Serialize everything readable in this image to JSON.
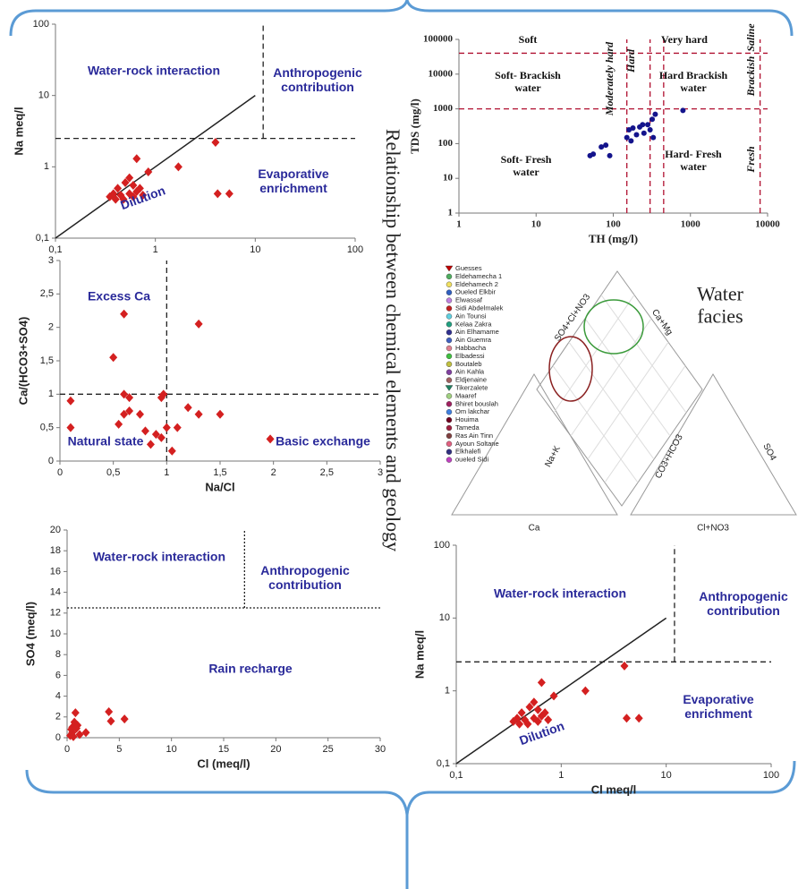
{
  "title": "Relationship between chemical elements and geology",
  "chart_data": [
    {
      "type": "scatter",
      "xlog": true,
      "ylog": true,
      "ylabel": "Na meq/l",
      "color": "#d42020",
      "annotation_color": "#2a2a9a",
      "xlim": [
        0.1,
        100
      ],
      "xticks": [
        {
          "value": 0.1,
          "label": "0,1"
        },
        1,
        10,
        100
      ],
      "ylim": [
        0.1,
        100
      ],
      "yticks": [
        {
          "value": 0.1,
          "label": "0,1"
        },
        1,
        10,
        100
      ],
      "x": [
        0.35,
        0.38,
        0.4,
        0.42,
        0.45,
        0.5,
        0.55,
        0.6,
        0.65,
        0.7,
        0.6,
        0.55,
        0.65,
        0.75,
        0.85,
        1.7,
        4,
        4.2,
        5.5,
        0.48
      ],
      "y": [
        0.38,
        0.42,
        0.35,
        0.5,
        0.4,
        0.6,
        0.7,
        0.55,
        0.45,
        0.5,
        0.38,
        0.42,
        1.3,
        0.4,
        0.85,
        1.0,
        2.2,
        0.42,
        0.42,
        0.35
      ],
      "lines": [
        {
          "x": [
            0.1,
            10
          ],
          "y": [
            0.1,
            10
          ],
          "style": "solid",
          "color": "#222"
        },
        {
          "x": [
            0.1,
            100
          ],
          "y": [
            2.5,
            2.5
          ],
          "style": "dashed",
          "color": "#222"
        },
        {
          "x": [
            12,
            12
          ],
          "y": [
            2.5,
            100
          ],
          "style": "dashed",
          "color": "#222"
        }
      ],
      "annotations": [
        "Water-rock interaction",
        "Anthropogenic\ncontribution",
        "Evaporative\nenrichment",
        "Dilution"
      ]
    },
    {
      "type": "scatter",
      "xlog": true,
      "ylog": true,
      "xlabel": "TH (mg/l)",
      "ylabel": "TDS (mg/l)",
      "color": "#14148c",
      "annotation_color": "#111",
      "xlim": [
        1,
        10000
      ],
      "xticks": [
        1,
        10,
        100,
        1000,
        10000
      ],
      "ylim": [
        1,
        100000
      ],
      "yticks": [
        1,
        10,
        100,
        1000,
        10000,
        100000
      ],
      "x": [
        50,
        55,
        70,
        80,
        90,
        150,
        160,
        170,
        200,
        220,
        250,
        280,
        300,
        320,
        350,
        330,
        800,
        180,
        240
      ],
      "y": [
        45,
        50,
        80,
        90,
        45,
        150,
        250,
        120,
        180,
        300,
        200,
        350,
        250,
        500,
        700,
        150,
        900,
        280,
        350
      ],
      "lines": [
        {
          "x": [
            1,
            10000
          ],
          "y": [
            40000,
            40000
          ],
          "style": "dashed",
          "color": "#b01030"
        },
        {
          "x": [
            1,
            10000
          ],
          "y": [
            1000,
            1000
          ],
          "style": "dashed",
          "color": "#b01030"
        },
        {
          "x": [
            150,
            150
          ],
          "y": [
            1,
            100000
          ],
          "style": "dashed",
          "color": "#b01030"
        },
        {
          "x": [
            300,
            300
          ],
          "y": [
            1,
            100000
          ],
          "style": "dashed",
          "color": "#b01030"
        },
        {
          "x": [
            450,
            450
          ],
          "y": [
            1,
            100000
          ],
          "style": "dashed",
          "color": "#b01030"
        },
        {
          "x": [
            8000,
            8000
          ],
          "y": [
            1,
            100000
          ],
          "style": "dashed",
          "color": "#b01030"
        }
      ],
      "annotations": [
        "Soft",
        "Very hard",
        "Saline",
        "Soft- Brackish\nwater",
        "Hard  Brackish\nwater",
        "Brackish",
        "Soft- Fresh\nwater",
        "Hard- Fresh\nwater",
        "Fresh",
        "Moderately hard",
        "Hard"
      ]
    },
    {
      "type": "scatter",
      "xlabel": "Na/Cl",
      "ylabel": "Ca/(HCO3+SO4)",
      "color": "#d42020",
      "annotation_color": "#2a2a9a",
      "xlim": [
        0,
        3
      ],
      "xticks": [
        0,
        {
          "value": 0.5,
          "label": "0,5"
        },
        1,
        {
          "value": 1.5,
          "label": "1,5"
        },
        2,
        {
          "value": 2.5,
          "label": "2,5"
        },
        3
      ],
      "ylim": [
        0,
        3
      ],
      "yticks": [
        0,
        {
          "value": 0.5,
          "label": "0,5"
        },
        1,
        {
          "value": 1.5,
          "label": "1,5"
        },
        2,
        {
          "value": 2.5,
          "label": "2,5"
        },
        3
      ],
      "x": [
        0.1,
        0.1,
        0.5,
        0.6,
        1.3,
        0.6,
        0.65,
        0.95,
        0.97,
        0.55,
        0.6,
        0.65,
        0.75,
        0.8,
        0.9,
        0.85,
        0.95,
        1.0,
        1.05,
        1.1,
        1.2,
        1.3,
        1.5,
        1.97
      ],
      "y": [
        0.9,
        0.5,
        1.55,
        2.2,
        2.05,
        1.0,
        0.95,
        0.95,
        1.0,
        0.55,
        0.7,
        0.75,
        0.7,
        0.45,
        0.4,
        0.25,
        0.35,
        0.5,
        0.15,
        0.5,
        0.8,
        0.7,
        0.7,
        0.33
      ],
      "lines": [
        {
          "x": [
            1,
            1
          ],
          "y": [
            0,
            3
          ],
          "style": "dashed",
          "color": "#222"
        },
        {
          "x": [
            0,
            3
          ],
          "y": [
            1,
            1
          ],
          "style": "dashed",
          "color": "#222"
        }
      ],
      "annotations": [
        "Excess Ca",
        "Natural state",
        "Basic exchange"
      ]
    },
    {
      "type": "piper",
      "facies_label": "Water\nfacies",
      "axis_labels": [
        "SO4+Cl+NO3",
        "Ca+Mg",
        "Na+K",
        "Ca",
        "CO3+HCO3",
        "SO4",
        "Cl+NO3"
      ],
      "series": [
        {
          "name": "Guesses",
          "color": "#c00000"
        },
        {
          "name": "Eldehamecha 1",
          "color": "#4fae60"
        },
        {
          "name": "Eldehamech 2",
          "color": "#f0e060"
        },
        {
          "name": "Oueled Elkbir",
          "color": "#2f5fc0"
        },
        {
          "name": "Elwassaf",
          "color": "#c080e0"
        },
        {
          "name": "Sidi Abdelmalek",
          "color": "#c02020"
        },
        {
          "name": "Ain Tounsi",
          "color": "#60d0e0"
        },
        {
          "name": "Kelaa Zakra",
          "color": "#20a080"
        },
        {
          "name": "Ain Elhamame",
          "color": "#303090"
        },
        {
          "name": "Ain Guemra",
          "color": "#4060c0"
        },
        {
          "name": "Habbacha",
          "color": "#e08090"
        },
        {
          "name": "Elbadessi",
          "color": "#40c040"
        },
        {
          "name": "Boutaleb",
          "color": "#c0c040"
        },
        {
          "name": "Ain Kahla",
          "color": "#8040a0"
        },
        {
          "name": "Eldjenaine",
          "color": "#a06060"
        },
        {
          "name": "Tikerzalete",
          "color": "#208060"
        },
        {
          "name": "Maaref",
          "color": "#a0d080"
        },
        {
          "name": "Bhiret bouslah",
          "color": "#a02060"
        },
        {
          "name": "Om lakchar",
          "color": "#4080e0"
        },
        {
          "name": "Houima",
          "color": "#700020"
        },
        {
          "name": "Tameda",
          "color": "#a02040"
        },
        {
          "name": "Ras Ain Tinn",
          "color": "#804040"
        },
        {
          "name": "Ayoun Soltane",
          "color": "#e06080"
        },
        {
          "name": "Elkhalefi",
          "color": "#303080"
        },
        {
          "name": "oueled Sidi",
          "color": "#c040c0"
        }
      ]
    },
    {
      "type": "scatter",
      "xlabel": "Cl  (meq/l)",
      "ylabel": "SO4  (meq/l)",
      "color": "#d42020",
      "annotation_color": "#2a2a9a",
      "xlim": [
        0,
        30
      ],
      "xticks": [
        0,
        5,
        10,
        15,
        20,
        25,
        30
      ],
      "ylim": [
        0,
        20
      ],
      "yticks": [
        0,
        2,
        4,
        6,
        8,
        10,
        12,
        14,
        16,
        18,
        20
      ],
      "x": [
        0.3,
        0.5,
        0.5,
        0.7,
        0.8,
        1,
        0.4,
        1.2,
        1.8,
        0.6,
        4,
        4.2,
        5.5,
        0.9
      ],
      "y": [
        0.2,
        0.5,
        1.0,
        1.5,
        2.4,
        1.2,
        0.8,
        0.3,
        0.5,
        0.1,
        2.5,
        1.6,
        1.8,
        0.9
      ],
      "lines": [
        {
          "x": [
            0,
            30
          ],
          "y": [
            12.5,
            12.5
          ],
          "style": "dotted",
          "color": "#222"
        },
        {
          "x": [
            17,
            17
          ],
          "y": [
            12.5,
            20
          ],
          "style": "dotted",
          "color": "#222"
        }
      ],
      "annotations": [
        "Water-rock interaction",
        "Anthropogenic\ncontribution",
        "Rain recharge"
      ]
    },
    {
      "type": "scatter",
      "xlog": true,
      "ylog": true,
      "xlabel": "Cl meq/l",
      "ylabel": "Na meq/l",
      "color": "#d42020",
      "annotation_color": "#2a2a9a",
      "xlim": [
        0.1,
        100
      ],
      "xticks": [
        {
          "value": 0.1,
          "label": "0,1"
        },
        1,
        10,
        100
      ],
      "ylim": [
        0.1,
        100
      ],
      "yticks": [
        {
          "value": 0.1,
          "label": "0,1"
        },
        1,
        10,
        100
      ],
      "x": [
        0.35,
        0.38,
        0.4,
        0.42,
        0.45,
        0.5,
        0.55,
        0.6,
        0.65,
        0.7,
        0.6,
        0.55,
        0.65,
        0.75,
        0.85,
        1.7,
        4,
        4.2,
        5.5,
        0.48
      ],
      "y": [
        0.38,
        0.42,
        0.35,
        0.5,
        0.4,
        0.6,
        0.7,
        0.55,
        0.45,
        0.5,
        0.38,
        0.42,
        1.3,
        0.4,
        0.85,
        1.0,
        2.2,
        0.42,
        0.42,
        0.35
      ],
      "lines": [
        {
          "x": [
            0.1,
            10
          ],
          "y": [
            0.1,
            10
          ],
          "style": "solid",
          "color": "#222"
        },
        {
          "x": [
            0.1,
            100
          ],
          "y": [
            2.5,
            2.5
          ],
          "style": "dashed",
          "color": "#222"
        },
        {
          "x": [
            12,
            12
          ],
          "y": [
            2.5,
            100
          ],
          "style": "dashed",
          "color": "#222"
        }
      ],
      "annotations": [
        "Water-rock interaction",
        "Anthropogenic\ncontribution",
        "Evaporative\nenrichment",
        "Dilution"
      ]
    }
  ]
}
